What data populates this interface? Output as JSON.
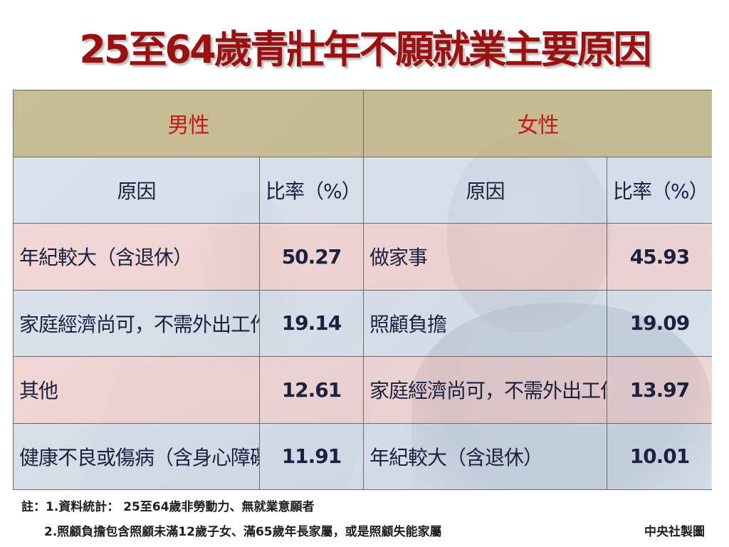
{
  "title": "25至64歲青壯年不願就業主要原因",
  "table": {
    "groups": {
      "male": "男性",
      "female": "女性"
    },
    "subheaders": {
      "reason": "原因",
      "rate": "比率（%）"
    },
    "rows": [
      {
        "male_reason": "年紀較大（含退休）",
        "male_rate": "50.27",
        "female_reason": "做家事",
        "female_rate": "45.93"
      },
      {
        "male_reason": "家庭經濟尚可，不需外出工作",
        "male_rate": "19.14",
        "female_reason": "照顧負擔",
        "female_rate": "19.09"
      },
      {
        "male_reason": "其他",
        "male_rate": "12.61",
        "female_reason": "家庭經濟尚可，不需外出工作",
        "female_rate": "13.97"
      },
      {
        "male_reason": "健康不良或傷病（含身心障礙）",
        "male_rate": "11.91",
        "female_reason": "年紀較大（含退休）",
        "female_rate": "10.01"
      }
    ]
  },
  "notes": {
    "line1": "註：1.資料統計： 25至64歲非勞動力、無就業意願者",
    "line2": "2.照顧負擔包含照顧未滿12歲子女、滿65歲年長家屬，或是照顧失能家屬"
  },
  "credit": "中央社製圖"
}
